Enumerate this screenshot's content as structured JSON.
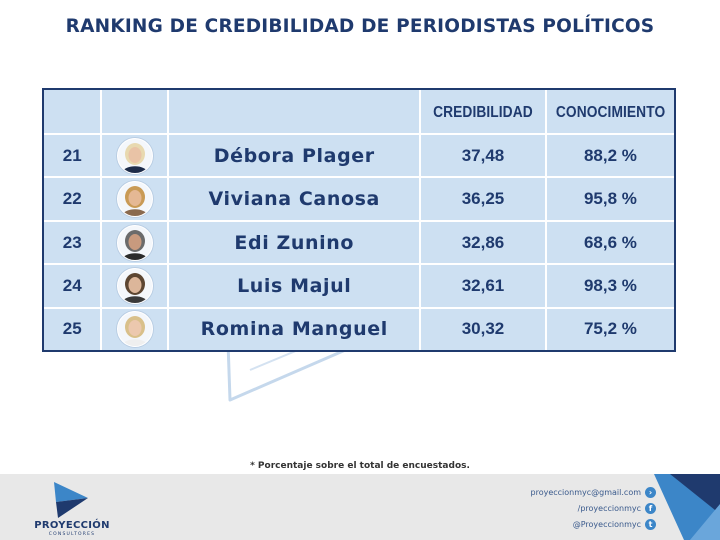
{
  "title": "RANKING DE CREDIBILIDAD DE PERIODISTAS POLÍTICOS",
  "table": {
    "headers": {
      "rank": "",
      "photo": "",
      "name": "",
      "credibilidad": "CREDIBILIDAD",
      "conocimiento": "CONOCIMIENTO"
    },
    "rows": [
      {
        "rank": "21",
        "name": "Débora Plager",
        "credibilidad": "37,48",
        "conocimiento": "88,2 %",
        "hair": "#e8d9b0",
        "skin": "#e9c3a6",
        "shirt": "#1d2c4a"
      },
      {
        "rank": "22",
        "name": "Viviana Canosa",
        "credibilidad": "36,25",
        "conocimiento": "95,8 %",
        "hair": "#c99a55",
        "skin": "#e5b894",
        "shirt": "#8a6a4e"
      },
      {
        "rank": "23",
        "name": "Edi Zunino",
        "credibilidad": "32,86",
        "conocimiento": "68,6 %",
        "hair": "#6b6b6b",
        "skin": "#c89a7e",
        "shirt": "#2b2b2b"
      },
      {
        "rank": "24",
        "name": "Luis Majul",
        "credibilidad": "32,61",
        "conocimiento": "98,3 %",
        "hair": "#5c4632",
        "skin": "#dcb69a",
        "shirt": "#3a3a3a"
      },
      {
        "rank": "25",
        "name": "Romina Manguel",
        "credibilidad": "30,32",
        "conocimiento": "75,2 %",
        "hair": "#d9c08a",
        "skin": "#ecc8ae",
        "shirt": "#efefef"
      }
    ]
  },
  "footnote": "* Porcentaje sobre el total de encuestados.",
  "brand": {
    "name": "PROYECCIÓN",
    "sub": "CONSULTORES"
  },
  "contacts": [
    {
      "text": "proyeccionmyc@gmail.com",
      "icon": "arrow-right-icon",
      "glyph": "›"
    },
    {
      "text": "/proyeccionmyc",
      "icon": "facebook-icon",
      "glyph": "f"
    },
    {
      "text": "@Proyeccionmyc",
      "icon": "twitter-icon",
      "glyph": "t"
    }
  ],
  "colors": {
    "primary": "#1f3a6e",
    "accent": "#3c86c8",
    "cell": "#ccdff1"
  }
}
